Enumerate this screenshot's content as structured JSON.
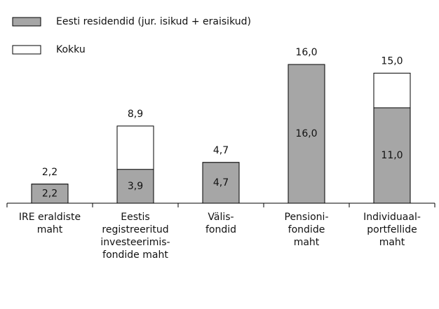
{
  "chart_data": {
    "type": "bar",
    "categories": [
      [
        "IRE eraldiste",
        "maht"
      ],
      [
        "Eestis",
        "registreeritud",
        "investeerimis-",
        "fondide maht"
      ],
      [
        "Välis-",
        "fondid"
      ],
      [
        "Pensioni-",
        "fondide",
        "maht"
      ],
      [
        "Individuaal-",
        "portfellide",
        "maht"
      ]
    ],
    "series": [
      {
        "name": "Eesti residendid (jur. isikud + eraisikud)",
        "color": "#a6a6a6",
        "values": [
          2.2,
          3.9,
          4.7,
          16.0,
          11.0
        ],
        "value_labels": [
          "2,2",
          "3,9",
          "4,7",
          "16,0",
          "11,0"
        ]
      },
      {
        "name": "Kokku",
        "color": "#ffffff",
        "values": [
          2.2,
          8.9,
          4.7,
          16.0,
          15.0
        ],
        "value_labels": [
          "2,2",
          "8,9",
          "4,7",
          "16,0",
          "15,0"
        ]
      }
    ],
    "ylim": [
      0,
      20
    ]
  }
}
